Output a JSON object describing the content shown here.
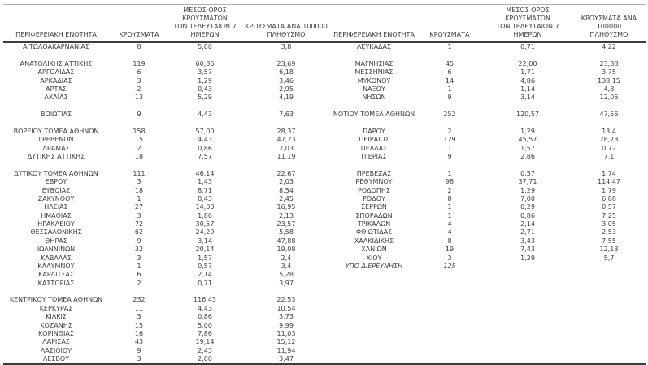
{
  "table": {
    "headers": {
      "region": "ΠΕΡΙΦΕΡΕΙΑΚΗ ΕΝΟΤΗΤΑ",
      "cases": "ΚΡΟΥΣΜΑΤΑ",
      "avg7": "ΜΕΣΟΣ ΟΡΟΣ ΚΡΟΥΣΜΑΤΩΝ\nΤΩΝ ΤΕΛΕΥΤΑΙΩΝ 7\nΗΜΕΡΩΝ",
      "per100k": "ΚΡΟΥΣΜΑΤΑ ΑΝΑ 100000\nΠΛΗΘΥΣΜΟ"
    },
    "rows": [
      {
        "l": [
          "ΑΙΤΩΛΟΑΚΑΡΝΑΝΙΑΣ",
          "8",
          "5,00",
          "3,8"
        ],
        "r": [
          "ΛΕΥΚΑΔΑΣ",
          "1",
          "0,71",
          "4,22"
        ]
      },
      {
        "l": [
          "",
          "",
          "",
          ""
        ],
        "r": [
          "",
          "",
          "",
          ""
        ]
      },
      {
        "l": [
          "ΑΝΑΤΟΛΙΚΗΣ ΑΤΤΙΚΗΣ",
          "119",
          "60,86",
          "23,69"
        ],
        "r": [
          "ΜΑΓΝΗΣΙΑΣ",
          "45",
          "22,00",
          "23,88"
        ]
      },
      {
        "l": [
          "ΑΡΓΟΛΙΔΑΣ",
          "6",
          "3,57",
          "6,18"
        ],
        "r": [
          "ΜΕΣΣΗΝΙΑΣ",
          "6",
          "1,71",
          "3,75"
        ]
      },
      {
        "l": [
          "ΑΡΚΑΔΙΑΣ",
          "3",
          "1,29",
          "3,46"
        ],
        "r": [
          "ΜΥΚΟΝΟΥ",
          "14",
          "4,86",
          "138,15"
        ]
      },
      {
        "l": [
          "ΑΡΤΑΣ",
          "2",
          "0,43",
          "2,95"
        ],
        "r": [
          "ΝΑΞΟΥ",
          "1",
          "1,14",
          "4,8"
        ]
      },
      {
        "l": [
          "ΑΧΑΪΑΣ",
          "13",
          "5,29",
          "4,19"
        ],
        "r": [
          "ΝΗΣΩΝ",
          "9",
          "3,14",
          "12,06"
        ]
      },
      {
        "l": [
          "",
          "",
          "",
          ""
        ],
        "r": [
          "",
          "",
          "",
          ""
        ]
      },
      {
        "l": [
          "ΒΟΙΩΤΙΑΣ",
          "9",
          "4,43",
          "7,63"
        ],
        "r": [
          "ΝΟΤΙΟΥ ΤΟΜΕΑ ΑΘΗΝΩΝ",
          "252",
          "120,57",
          "47,56"
        ]
      },
      {
        "l": [
          "",
          "",
          "",
          ""
        ],
        "r": [
          "",
          "",
          "",
          ""
        ]
      },
      {
        "l": [
          "ΒΟΡΕΙΟΥ ΤΟΜΕΑ ΑΘΗΝΩΝ",
          "158",
          "57,00",
          "28,37"
        ],
        "r": [
          "ΠΑΡΟΥ",
          "2",
          "1,29",
          "13,4"
        ]
      },
      {
        "l": [
          "ΓΡΕΒΕΝΩΝ",
          "15",
          "4,43",
          "47,23"
        ],
        "r": [
          "ΠΕΙΡΑΙΩΣ",
          "129",
          "45,57",
          "28,73"
        ]
      },
      {
        "l": [
          "ΔΡΑΜΑΣ",
          "2",
          "0,86",
          "2,03"
        ],
        "r": [
          "ΠΕΛΛΑΣ",
          "1",
          "1,57",
          "0,72"
        ]
      },
      {
        "l": [
          "ΔΥΤΙΚΗΣ ΑΤΤΙΚΗΣ",
          "18",
          "7,57",
          "11,19"
        ],
        "r": [
          "ΠΙΕΡΙΑΣ",
          "9",
          "2,86",
          "7,1"
        ]
      },
      {
        "l": [
          "",
          "",
          "",
          ""
        ],
        "r": [
          "",
          "",
          "",
          ""
        ]
      },
      {
        "l": [
          "ΔΥΤΙΚΟΥ ΤΟΜΕΑ ΑΘΗΝΩΝ",
          "111",
          "46,14",
          "22,67"
        ],
        "r": [
          "ΠΡΕΒΕΖΑΣ",
          "1",
          "0,57",
          "1,74"
        ]
      },
      {
        "l": [
          "ΕΒΡΟΥ",
          "3",
          "1,43",
          "2,03"
        ],
        "r": [
          "ΡΕΘΥΜΝΟΥ",
          "98",
          "37,71",
          "114,47"
        ]
      },
      {
        "l": [
          "ΕΥΒΟΙΑΣ",
          "18",
          "8,71",
          "8,54"
        ],
        "r": [
          "ΡΟΔΟΠΗΣ",
          "2",
          "1,29",
          "1,79"
        ]
      },
      {
        "l": [
          "ΖΑΚΥΝΘΟΥ",
          "1",
          "0,43",
          "2,45"
        ],
        "r": [
          "ΡΟΔΟΥ",
          "8",
          "7,00",
          "6,88"
        ]
      },
      {
        "l": [
          "ΗΛΕΙΑΣ",
          "27",
          "14,00",
          "16,95"
        ],
        "r": [
          "ΣΕΡΡΩΝ",
          "1",
          "0,29",
          "0,57"
        ]
      },
      {
        "l": [
          "ΗΜΑΘΙΑΣ",
          "3",
          "1,86",
          "2,13"
        ],
        "r": [
          "ΣΠΟΡΑΔΩΝ",
          "1",
          "0,86",
          "7,25"
        ]
      },
      {
        "l": [
          "ΗΡΑΚΛΕΙΟΥ",
          "72",
          "30,57",
          "23,57"
        ],
        "r": [
          "ΤΡΙΚΑΛΩΝ",
          "4",
          "2,14",
          "3,05"
        ]
      },
      {
        "l": [
          "ΘΕΣΣΑΛΟΝΙΚΗΣ",
          "62",
          "24,29",
          "5,58"
        ],
        "r": [
          "ΦΘΙΩΤΙΔΑΣ",
          "4",
          "2,71",
          "2,53"
        ]
      },
      {
        "l": [
          "ΘΗΡΑΣ",
          "9",
          "3,14",
          "47,88"
        ],
        "r": [
          "ΧΑΛΚΙΔΙΚΗΣ",
          "8",
          "3,43",
          "7,55"
        ]
      },
      {
        "l": [
          "ΙΩΑΝΝΙΝΩΝ",
          "32",
          "20,14",
          "19,08"
        ],
        "r": [
          "ΧΑΝΙΩΝ",
          "19",
          "7,43",
          "12,13"
        ]
      },
      {
        "l": [
          "ΚΑΒΑΛΑΣ",
          "3",
          "1,57",
          "2,4"
        ],
        "r": [
          "ΧΙΟΥ",
          "3",
          "1,29",
          "5,7"
        ]
      },
      {
        "l": [
          "ΚΑΛΥΜΝΟΥ",
          "1",
          "0,57",
          "3,4"
        ],
        "r": [
          "ΥΠΟ ΔΙΕΡΕΥΝΗΣΗ",
          "125",
          "",
          ""
        ],
        "r_italic": true
      },
      {
        "l": [
          "ΚΑΡΔΙΤΣΑΣ",
          "6",
          "2,14",
          "5,28"
        ],
        "r": [
          "",
          "",
          "",
          ""
        ]
      },
      {
        "l": [
          "ΚΑΣΤΟΡΙΑΣ",
          "2",
          "0,71",
          "3,97"
        ],
        "r": [
          "",
          "",
          "",
          ""
        ]
      },
      {
        "l": [
          "",
          "",
          "",
          ""
        ],
        "r": [
          "",
          "",
          "",
          ""
        ]
      },
      {
        "l": [
          "ΚΕΝΤΡΙΚΟΥ ΤΟΜΕΑ ΑΘΗΝΩΝ",
          "232",
          "116,43",
          "22,53"
        ],
        "r": [
          "",
          "",
          "",
          ""
        ]
      },
      {
        "l": [
          "ΚΕΡΚΥΡΑΣ",
          "11",
          "4,43",
          "10,54"
        ],
        "r": [
          "",
          "",
          "",
          ""
        ]
      },
      {
        "l": [
          "ΚΙΛΚΙΣ",
          "3",
          "0,86",
          "3,73"
        ],
        "r": [
          "",
          "",
          "",
          ""
        ]
      },
      {
        "l": [
          "ΚΟΖΑΝΗΣ",
          "15",
          "5,00",
          "9,99"
        ],
        "r": [
          "",
          "",
          "",
          ""
        ]
      },
      {
        "l": [
          "ΚΟΡΙΝΘΙΑΣ",
          "16",
          "7,86",
          "11,03"
        ],
        "r": [
          "",
          "",
          "",
          ""
        ]
      },
      {
        "l": [
          "ΛΑΡΙΣΑΣ",
          "43",
          "19,14",
          "15,12"
        ],
        "r": [
          "",
          "",
          "",
          ""
        ]
      },
      {
        "l": [
          "ΛΑΣΙΘΙΟΥ",
          "9",
          "2,43",
          "11,94"
        ],
        "r": [
          "",
          "",
          "",
          ""
        ]
      },
      {
        "l": [
          "ΛΕΣΒΟΥ",
          "3",
          "2,00",
          "3,47"
        ],
        "r": [
          "",
          "",
          "",
          ""
        ]
      }
    ],
    "colors": {
      "text": "#3d3d3d",
      "rule_dark": "#3d3d3d",
      "rule_light": "#b0b0b0",
      "background": "#ffffff"
    }
  }
}
